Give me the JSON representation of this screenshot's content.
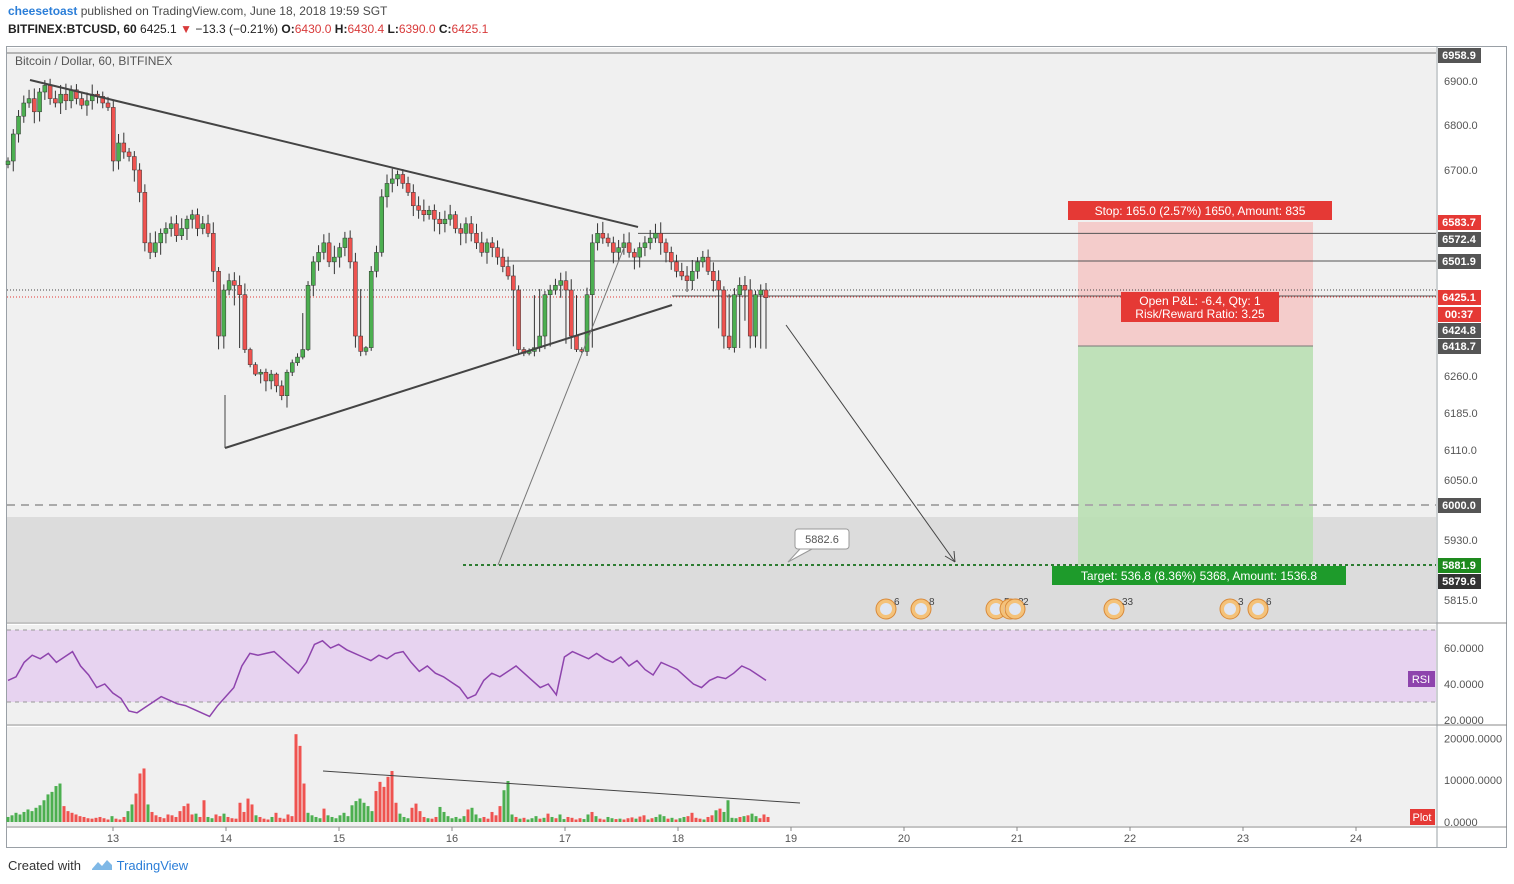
{
  "header": {
    "author": "cheesetoast",
    "published_text": " published on TradingView.com, June 18, 2018 19:59 SGT",
    "symbol": "BITFINEX:BTCUSD, 60",
    "last": "6425.1",
    "change": "−13.3 (−0.21%)",
    "ohlc_open_label": "O:",
    "ohlc_open": "6430.0",
    "ohlc_high_label": "H:",
    "ohlc_high": "6430.4",
    "ohlc_low_label": "L:",
    "ohlc_low": "6390.0",
    "ohlc_close_label": "C:",
    "ohlc_close": "6425.1"
  },
  "chart_title": "Bitcoin / Dollar, 60, BITFINEX",
  "footer": {
    "created_with": "Created with",
    "brand": "TradingView"
  },
  "colors": {
    "up": "#4caf50",
    "down": "#ef5350",
    "stop_fill": "#f5c6c4",
    "target_fill": "#b9dfb3",
    "rsi_fill": "#e7d3f0",
    "rsi_line": "#8e44ad",
    "bg": "#f0f0f0",
    "zone": "#dcdcdc"
  },
  "chart_data": {
    "type": "candlestick",
    "title": "Bitcoin / Dollar, 60, BITFINEX",
    "x_tick_labels": [
      "13",
      "14",
      "15",
      "16",
      "17",
      "18",
      "19",
      "20",
      "21",
      "22",
      "23",
      "24"
    ],
    "price_tick_labels": [
      "6900.0",
      "6800.0",
      "6700.0",
      "6260.0",
      "6185.0",
      "6110.0",
      "6050.0",
      "5930.0",
      "5815.0"
    ],
    "price_badges": [
      {
        "label": "6958.9",
        "color": "#555555"
      },
      {
        "label": "6583.7",
        "color": "#e53935"
      },
      {
        "label": "6572.4",
        "color": "#555555"
      },
      {
        "label": "6501.9",
        "color": "#555555"
      },
      {
        "label": "6425.1",
        "color": "#e53935"
      },
      {
        "label": "00:37",
        "color": "#e53935"
      },
      {
        "label": "6424.8",
        "color": "#555555"
      },
      {
        "label": "6418.7",
        "color": "#555555"
      },
      {
        "label": "6000.0",
        "color": "#555555"
      },
      {
        "label": "5881.9",
        "color": "#1e8a1e"
      },
      {
        "label": "5879.6",
        "color": "#333333"
      }
    ],
    "position": {
      "entry": 6418.7,
      "stop": 6583.7,
      "target": 5881.9,
      "stop_label": "Stop: 165.0 (2.57%) 1650, Amount: 835",
      "pnl_label": "Open P&L: -6.4, Qty: 1",
      "rr_label": "Risk/Reward Ratio: 3.25",
      "target_label": "Target: 536.8 (8.36%) 5368, Amount: 1536.8"
    },
    "callout": "5882.6",
    "events": [
      "6",
      "8",
      "5",
      "2",
      "2",
      "33",
      "3",
      "6"
    ],
    "rsi": {
      "label": "RSI",
      "ticks": [
        "60.0000",
        "40.0000",
        "20.0000"
      ],
      "upper": 70,
      "lower": 30
    },
    "volume": {
      "label": "Plot",
      "ticks": [
        "20000.0000",
        "10000.0000",
        "0.0000"
      ],
      "ylim": [
        0,
        22000
      ]
    },
    "candles_close": [
      6720,
      6780,
      6820,
      6850,
      6860,
      6830,
      6875,
      6890,
      6860,
      6850,
      6870,
      6855,
      6880,
      6860,
      6845,
      6855,
      6870,
      6865,
      6850,
      6840,
      6720,
      6760,
      6740,
      6730,
      6700,
      6650,
      6540,
      6520,
      6540,
      6560,
      6570,
      6580,
      6555,
      6570,
      6590,
      6600,
      6570,
      6580,
      6560,
      6480,
      6420,
      6440,
      6460,
      6450,
      6430,
      6400,
      6320,
      6270,
      6280,
      6250,
      6270,
      6240,
      6220,
      6280,
      6330,
      6360,
      6400,
      6450,
      6500,
      6520,
      6540,
      6500,
      6510,
      6530,
      6550,
      6500,
      6420,
      6390,
      6410,
      6480,
      6520,
      6640,
      6670,
      6680,
      6690,
      6670,
      6650,
      6620,
      6610,
      6600,
      6610,
      6590,
      6580,
      6590,
      6600,
      6570,
      6560,
      6580,
      6560,
      6540,
      6520,
      6540,
      6530,
      6510,
      6490,
      6470,
      6440,
      6400,
      6380,
      6390,
      6410,
      6420,
      6430,
      6440,
      6450,
      6460,
      6440,
      6420,
      6400,
      6390,
      6430,
      6540,
      6560,
      6550,
      6540,
      6520,
      6530,
      6540,
      6520,
      6510,
      6530,
      6540,
      6550,
      6560,
      6540,
      6520,
      6500,
      6480,
      6470,
      6460,
      6480,
      6500,
      6510,
      6480,
      6460,
      6440,
      6420,
      6410,
      6430,
      6450,
      6440,
      6420,
      6430,
      6440,
      6425
    ],
    "rsi_values": [
      42,
      44,
      52,
      56,
      54,
      57,
      52,
      55,
      58,
      50,
      45,
      38,
      40,
      35,
      32,
      25,
      24,
      27,
      30,
      33,
      31,
      29,
      28,
      26,
      24,
      22,
      28,
      33,
      38,
      50,
      57,
      56,
      57,
      58,
      54,
      50,
      46,
      52,
      62,
      64,
      60,
      62,
      59,
      57,
      55,
      53,
      56,
      54,
      57,
      58,
      52,
      47,
      50,
      46,
      44,
      41,
      38,
      32,
      34,
      42,
      46,
      44,
      47,
      50,
      46,
      42,
      38,
      40,
      34,
      55,
      58,
      56,
      54,
      57,
      54,
      52,
      55,
      50,
      53,
      48,
      45,
      52,
      50,
      48,
      44,
      40,
      38,
      42,
      44,
      43,
      46,
      50,
      48,
      45,
      42
    ],
    "volume_values": [
      1200,
      1600,
      2200,
      1800,
      2400,
      3000,
      2600,
      3400,
      4000,
      5200,
      6600,
      7200,
      8600,
      9200,
      3800,
      2600,
      2200,
      1800,
      1400,
      1200,
      900,
      800,
      1000,
      1200,
      900,
      600,
      1400,
      800,
      600,
      1200,
      2600,
      4200,
      6800,
      11600,
      12800,
      4200,
      2400,
      1600,
      1200,
      900,
      1800,
      1600,
      1200,
      2600,
      3800,
      4400,
      1800,
      2000,
      1200,
      5200,
      1200,
      900,
      1800,
      1400,
      2000,
      1200,
      900,
      800,
      4600,
      2400,
      5600,
      4200,
      1600,
      1200,
      800,
      600,
      1200,
      2200,
      1000,
      800,
      1800,
      1400,
      21000,
      18200,
      9200,
      2200,
      1600,
      1200,
      900,
      3200,
      1600,
      1200,
      900,
      1600,
      2200,
      1400,
      4000,
      5000,
      5600,
      4600,
      3800,
      2600,
      7400,
      9600,
      8400,
      10800,
      12200,
      4600,
      2000,
      1200,
      900,
      3400,
      4400,
      2600,
      1200,
      900,
      800,
      1200,
      3600,
      2400,
      1400,
      900,
      1200,
      800,
      1400,
      3000,
      3400,
      1800,
      900,
      1200,
      800,
      2400,
      1600,
      3800,
      7600,
      9800,
      1800,
      1200,
      800,
      1000,
      600,
      900,
      1400,
      800,
      1000,
      2000,
      1200,
      900,
      1800,
      700,
      1200,
      1000,
      600,
      900,
      700,
      1800,
      2400,
      1400,
      800,
      600,
      1200,
      900,
      700,
      800,
      600,
      900,
      1100,
      800,
      1300,
      1600,
      600,
      900,
      1200,
      1800,
      1400,
      800,
      1000,
      600,
      900,
      1200,
      1400,
      2200,
      1000,
      800,
      600,
      1200,
      1600,
      2800,
      3200,
      2400,
      5200,
      1000,
      900,
      1200,
      1400,
      1600,
      2000,
      1400,
      900,
      1800,
      1200
    ],
    "volume_up": [
      1,
      1,
      1,
      1,
      1,
      1,
      1,
      1,
      1,
      1,
      1,
      1,
      1,
      1,
      0,
      0,
      0,
      0,
      0,
      0,
      0,
      0,
      0,
      0,
      0,
      0,
      1,
      0,
      0,
      0,
      1,
      1,
      0,
      0,
      0,
      1,
      0,
      0,
      0,
      0,
      0,
      0,
      0,
      0,
      0,
      0,
      0,
      1,
      0,
      0,
      1,
      1,
      0,
      0,
      1,
      0,
      0,
      0,
      0,
      0,
      0,
      0,
      1,
      0,
      0,
      0,
      1,
      0,
      0,
      0,
      0,
      0,
      0,
      0,
      0,
      1,
      1,
      1,
      1,
      0,
      1,
      1,
      1,
      1,
      1,
      1,
      1,
      1,
      1,
      1,
      1,
      1,
      0,
      0,
      0,
      0,
      0,
      0,
      1,
      1,
      1,
      0,
      0,
      0,
      0,
      1,
      0,
      0,
      1,
      1,
      1,
      1,
      1,
      1,
      1,
      0,
      1,
      1,
      1,
      0,
      0,
      0,
      0,
      0,
      1,
      1,
      1,
      0,
      1,
      0,
      1,
      1,
      1,
      0,
      1,
      0,
      1,
      0,
      1,
      1,
      0,
      0,
      0,
      0,
      1,
      1,
      0,
      1,
      0,
      0,
      1,
      1,
      0,
      1,
      0,
      0,
      0,
      1,
      0,
      0,
      1,
      0,
      1,
      1,
      1,
      0,
      1,
      0,
      1,
      1,
      0,
      0,
      0,
      0,
      1,
      0,
      0,
      1,
      0,
      1,
      1,
      1,
      1,
      0,
      1,
      0,
      1,
      1,
      0
    ]
  }
}
